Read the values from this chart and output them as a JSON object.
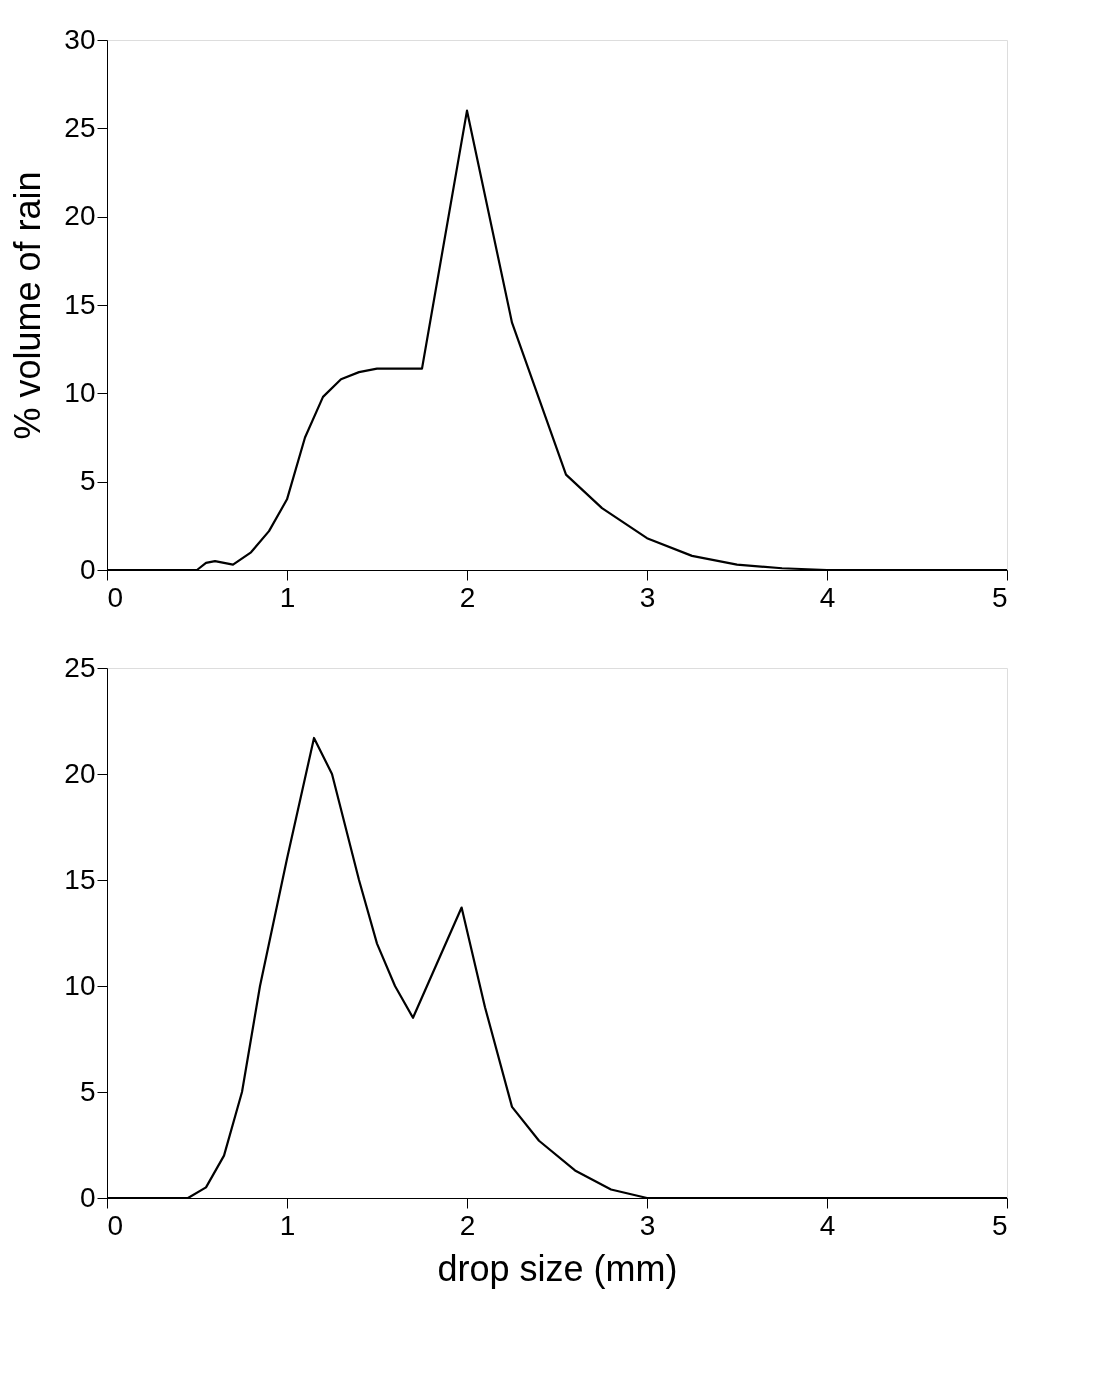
{
  "chart_data": [
    {
      "type": "line",
      "ylabel": "% volume of rain",
      "xlim": [
        0,
        5
      ],
      "xticks": [
        0,
        1,
        2,
        3,
        4,
        5
      ],
      "ylim": [
        0,
        30
      ],
      "yticks": [
        0,
        5,
        10,
        15,
        20,
        25,
        30
      ],
      "grid": false,
      "marker": "none",
      "line_style": "solid",
      "series": [
        {
          "color": "#000000",
          "x": [
            0,
            0.5,
            0.55,
            0.6,
            0.7,
            0.8,
            0.9,
            1.0,
            1.1,
            1.2,
            1.3,
            1.4,
            1.5,
            1.6,
            1.75,
            2.0,
            2.25,
            2.55,
            2.75,
            3.0,
            3.25,
            3.5,
            3.75,
            4.0,
            5.0
          ],
          "values": [
            0,
            0,
            0.4,
            0.5,
            0.3,
            1,
            2.2,
            4,
            7.5,
            9.8,
            10.8,
            11.2,
            11.4,
            11.4,
            11.4,
            26,
            14,
            5.4,
            3.5,
            1.8,
            0.8,
            0.3,
            0.1,
            0,
            0
          ]
        }
      ]
    },
    {
      "type": "line",
      "xlabel": "drop size (mm)",
      "xlim": [
        0,
        5
      ],
      "xticks": [
        0,
        1,
        2,
        3,
        4,
        5
      ],
      "ylim": [
        0,
        25
      ],
      "yticks": [
        0,
        5,
        10,
        15,
        20,
        25
      ],
      "grid": false,
      "marker": "none",
      "line_style": "solid",
      "series": [
        {
          "color": "#000000",
          "x": [
            0,
            0.45,
            0.55,
            0.65,
            0.75,
            0.85,
            1.0,
            1.15,
            1.25,
            1.4,
            1.5,
            1.6,
            1.7,
            1.97,
            2.1,
            2.25,
            2.4,
            2.6,
            2.8,
            3.0,
            5.0
          ],
          "values": [
            0,
            0,
            0.5,
            2,
            5,
            10,
            16,
            21.7,
            20,
            15,
            12,
            10,
            8.5,
            13.7,
            9,
            4.3,
            2.7,
            1.3,
            0.4,
            0,
            0
          ]
        }
      ]
    }
  ]
}
